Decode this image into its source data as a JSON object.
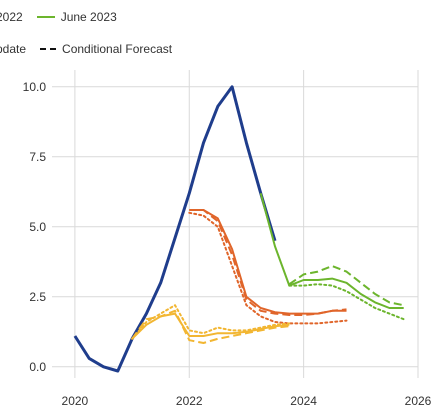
{
  "legend": {
    "row1": [
      {
        "label": "2022",
        "color": "#555555",
        "style": "none",
        "clip": true
      },
      {
        "label": "June 2023",
        "color": "#6cb52d",
        "style": "solid"
      }
    ],
    "row2": [
      {
        "label": "pdate",
        "color": "#555555",
        "style": "none",
        "clip": true
      },
      {
        "label": "Conditional Forecast",
        "color": "#111111",
        "style": "dashed"
      }
    ]
  },
  "chart_data": {
    "type": "line",
    "title": "",
    "xlabel": "",
    "ylabel": "",
    "xlim": [
      2019.6,
      2026.0
    ],
    "ylim": [
      -0.4,
      10.6
    ],
    "grid": true,
    "x_ticks": [
      2020,
      2022,
      2024,
      2026
    ],
    "x_tick_labels": [
      "2020",
      "2022",
      "2024",
      "2026"
    ],
    "y_ticks": [
      0.0,
      2.5,
      5.0,
      7.5,
      10.0
    ],
    "y_tick_labels": [
      "0.0",
      "2.5",
      "5.0",
      "7.5",
      "10.0"
    ],
    "series": [
      {
        "color": "#1f3d8c",
        "dash": "solid",
        "width": 3,
        "x": [
          2020.0,
          2020.25,
          2020.5,
          2020.75,
          2021.0,
          2021.25,
          2021.5,
          2021.75,
          2022.0,
          2022.25,
          2022.5,
          2022.75,
          2023.0,
          2023.25,
          2023.5
        ],
        "y": [
          1.1,
          0.3,
          0.0,
          -0.15,
          1.0,
          1.9,
          3.0,
          4.6,
          6.2,
          8.0,
          9.3,
          10.0,
          8.0,
          6.2,
          4.5
        ]
      },
      {
        "color": "#e0652a",
        "dash": "solid",
        "width": 2,
        "x": [
          2022.0,
          2022.25,
          2022.5,
          2022.75,
          2023.0,
          2023.25,
          2023.5,
          2023.75,
          2024.0,
          2024.25,
          2024.5,
          2024.75
        ],
        "y": [
          5.6,
          5.6,
          5.3,
          4.2,
          2.5,
          2.1,
          1.95,
          1.9,
          1.9,
          1.9,
          2.0,
          2.0
        ]
      },
      {
        "color": "#e0652a",
        "dash": "dotted",
        "width": 2,
        "x": [
          2022.0,
          2022.25,
          2022.5,
          2022.75,
          2023.0,
          2023.25,
          2023.5,
          2023.75,
          2024.0,
          2024.25,
          2024.5,
          2024.75
        ],
        "y": [
          5.5,
          5.4,
          5.0,
          3.6,
          2.2,
          1.8,
          1.6,
          1.55,
          1.55,
          1.55,
          1.6,
          1.65
        ]
      },
      {
        "color": "#e0652a",
        "dash": "dashed",
        "width": 2,
        "x": [
          2022.0,
          2022.25,
          2022.5,
          2022.75,
          2023.0,
          2023.25,
          2023.5,
          2023.75,
          2024.0,
          2024.25,
          2024.5,
          2024.75
        ],
        "y": [
          5.6,
          5.6,
          5.2,
          4.0,
          2.4,
          2.0,
          1.9,
          1.85,
          1.85,
          1.9,
          2.0,
          2.05
        ]
      },
      {
        "color": "#f2b632",
        "dash": "solid",
        "width": 2,
        "x": [
          2021.0,
          2021.25,
          2021.5,
          2021.75,
          2022.0,
          2022.25,
          2022.5,
          2022.75,
          2023.0,
          2023.25,
          2023.5,
          2023.75
        ],
        "y": [
          1.0,
          1.5,
          1.8,
          1.9,
          1.1,
          1.1,
          1.2,
          1.2,
          1.25,
          1.35,
          1.45,
          1.5
        ]
      },
      {
        "color": "#f2b632",
        "dash": "dotted",
        "width": 2,
        "x": [
          2021.0,
          2021.25,
          2021.5,
          2021.75,
          2022.0,
          2022.25,
          2022.5,
          2022.75,
          2023.0,
          2023.25,
          2023.5,
          2023.75
        ],
        "y": [
          1.0,
          1.6,
          1.9,
          2.2,
          1.3,
          1.2,
          1.4,
          1.3,
          1.3,
          1.4,
          1.5,
          1.55
        ]
      },
      {
        "color": "#f2b632",
        "dash": "dashed",
        "width": 2,
        "x": [
          2021.0,
          2021.25,
          2021.5,
          2021.75,
          2022.0,
          2022.25,
          2022.5,
          2022.75,
          2023.0,
          2023.25,
          2023.5,
          2023.75
        ],
        "y": [
          1.0,
          1.7,
          1.8,
          2.0,
          0.95,
          0.85,
          1.0,
          1.1,
          1.2,
          1.3,
          1.4,
          1.45
        ]
      },
      {
        "color": "#6cb52d",
        "dash": "solid",
        "width": 2,
        "x": [
          2023.25,
          2023.5,
          2023.75,
          2024.0,
          2024.25,
          2024.5,
          2024.75,
          2025.0,
          2025.25,
          2025.5,
          2025.75
        ],
        "y": [
          6.2,
          4.3,
          2.9,
          3.1,
          3.1,
          3.15,
          3.0,
          2.6,
          2.3,
          2.1,
          2.1
        ]
      },
      {
        "color": "#6cb52d",
        "dash": "dashed",
        "width": 2,
        "x": [
          2023.75,
          2024.0,
          2024.25,
          2024.5,
          2024.75,
          2025.0,
          2025.25,
          2025.5,
          2025.75
        ],
        "y": [
          2.95,
          3.3,
          3.4,
          3.6,
          3.4,
          3.0,
          2.6,
          2.3,
          2.2
        ]
      },
      {
        "color": "#6cb52d",
        "dash": "dotted",
        "width": 2,
        "x": [
          2023.75,
          2024.0,
          2024.25,
          2024.5,
          2024.75,
          2025.0,
          2025.25,
          2025.5,
          2025.75
        ],
        "y": [
          2.9,
          2.9,
          2.95,
          2.9,
          2.7,
          2.4,
          2.1,
          1.9,
          1.7
        ]
      }
    ]
  }
}
